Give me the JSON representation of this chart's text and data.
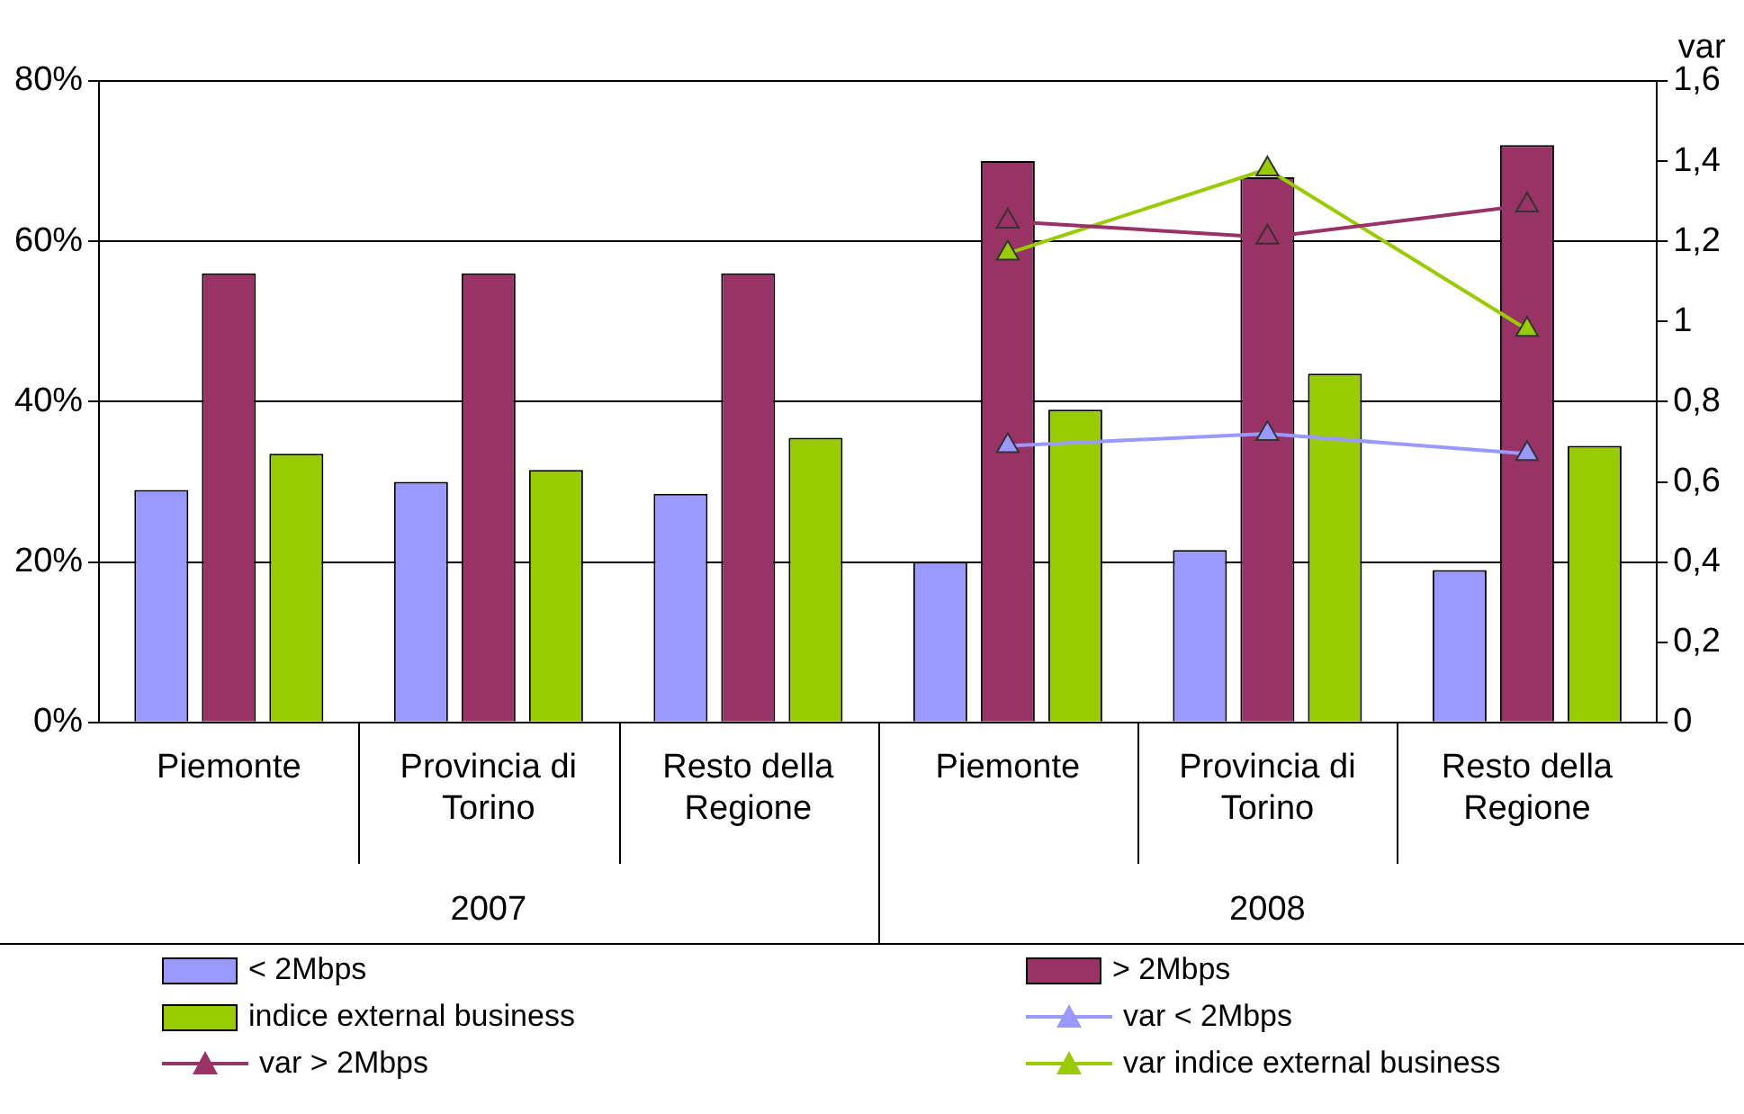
{
  "chart_data": {
    "type": "bar",
    "categories": [
      "Piemonte",
      "Provincia di Torino",
      "Resto della Regione",
      "Piemonte",
      "Provincia di Torino",
      "Resto della Regione"
    ],
    "series": [
      {
        "name": "< 2Mbps",
        "color": "#9999ff",
        "values": [
          29,
          30,
          28.5,
          20,
          21.5,
          19
        ]
      },
      {
        "name": "> 2Mbps",
        "color": "#993366",
        "values": [
          56,
          56,
          56,
          70,
          68,
          72
        ]
      },
      {
        "name": "indice external business",
        "color": "#99cc00",
        "values": [
          33.5,
          31.5,
          35.5,
          39,
          43.5,
          34.5
        ]
      },
      {
        "name": "var < 2Mbps",
        "type": "line",
        "axis": "y2",
        "color": "#9999ff",
        "values": [
          null,
          null,
          null,
          0.69,
          0.72,
          0.67
        ]
      },
      {
        "name": "var > 2Mbps",
        "type": "line",
        "axis": "y2",
        "color": "#993366",
        "values": [
          null,
          null,
          null,
          1.25,
          1.21,
          1.29
        ]
      },
      {
        "name": "var indice external business",
        "type": "line",
        "axis": "y2",
        "color": "#99cc00",
        "values": [
          null,
          null,
          null,
          1.17,
          1.38,
          0.98
        ]
      }
    ],
    "ylim": [
      0,
      80
    ],
    "yticks": [
      {
        "value": 0,
        "label": "0%"
      },
      {
        "value": 20,
        "label": "20%"
      },
      {
        "value": 40,
        "label": "40%"
      },
      {
        "value": 60,
        "label": "60%"
      },
      {
        "value": 80,
        "label": "80%"
      }
    ],
    "y2lim": [
      0,
      1.6
    ],
    "y2ticks": [
      0,
      {
        "value": 0.2,
        "label": "0,2"
      },
      {
        "value": 0.4,
        "label": "0,4"
      },
      {
        "value": 0.6,
        "label": "0,6"
      },
      {
        "value": 0.8,
        "label": "0,8"
      },
      1,
      {
        "value": 1.2,
        "label": "1,2"
      },
      {
        "value": 1.4,
        "label": "1,4"
      },
      {
        "value": 1.6,
        "label": "1,6"
      }
    ],
    "y2label": "var",
    "annotations": [
      "2007",
      "2008"
    ],
    "grid": "y",
    "legend": "bottom",
    "marker": "triangle",
    "line_style": "solid"
  }
}
